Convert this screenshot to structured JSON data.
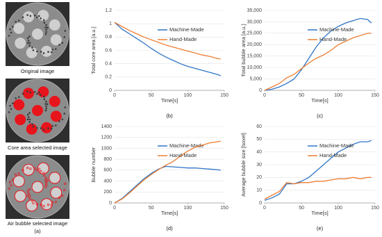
{
  "images": [
    {
      "caption": "Original image"
    },
    {
      "caption": "Core area selected image"
    },
    {
      "caption": "Air bubble selected image"
    }
  ],
  "panel_label": "(a)",
  "chart_data": [
    {
      "type": "line",
      "panel_label": "(b)",
      "xlabel": "Time[s]",
      "ylabel": "Total core area [a.u.]",
      "x": [
        0,
        10,
        20,
        30,
        40,
        50,
        60,
        70,
        80,
        90,
        100,
        110,
        120,
        130,
        140,
        145
      ],
      "series": [
        {
          "name": "Machine-Made",
          "color": "#2e75c6",
          "values": [
            1.02,
            0.92,
            0.85,
            0.78,
            0.71,
            0.63,
            0.56,
            0.5,
            0.45,
            0.4,
            0.36,
            0.33,
            0.3,
            0.27,
            0.24,
            0.22
          ]
        },
        {
          "name": "Hand-Made",
          "color": "#ed7d31",
          "values": [
            1.02,
            0.96,
            0.9,
            0.85,
            0.8,
            0.76,
            0.72,
            0.68,
            0.65,
            0.62,
            0.59,
            0.56,
            0.53,
            0.51,
            0.48,
            0.47
          ]
        }
      ],
      "xlim": [
        0,
        150
      ],
      "xticks": [
        0,
        50,
        100,
        150
      ],
      "ylim": [
        0,
        1.2
      ],
      "yticks": [
        0,
        0.2,
        0.4,
        0.6,
        0.8,
        1,
        1.2
      ],
      "grid": true
    },
    {
      "type": "line",
      "panel_label": "(c)",
      "xlabel": "Time[s]",
      "ylabel": "Total bubble area [a.u.]",
      "x": [
        0,
        10,
        20,
        30,
        40,
        50,
        60,
        70,
        80,
        90,
        100,
        110,
        120,
        130,
        140,
        145
      ],
      "series": [
        {
          "name": "Machine-Made",
          "color": "#2e75c6",
          "values": [
            0,
            500,
            1500,
            3000,
            5000,
            9000,
            14000,
            19000,
            23000,
            26000,
            28000,
            29500,
            30500,
            31500,
            31000,
            29500
          ]
        },
        {
          "name": "Hand-Made",
          "color": "#ed7d31",
          "values": [
            0,
            1500,
            3000,
            5500,
            7000,
            9500,
            12000,
            14000,
            15500,
            17500,
            20000,
            21500,
            23000,
            24000,
            25000,
            25000
          ]
        }
      ],
      "xlim": [
        0,
        150
      ],
      "xticks": [
        0,
        50,
        100,
        150
      ],
      "ylim": [
        0,
        35000
      ],
      "yticks": [
        0,
        {
          "value": 5000,
          "label": "5,000"
        },
        {
          "value": 10000,
          "label": "10,000"
        },
        {
          "value": 15000,
          "label": "15,000"
        },
        {
          "value": 20000,
          "label": "20,000"
        },
        {
          "value": 25000,
          "label": "25,000"
        },
        {
          "value": 30000,
          "label": "30,000"
        },
        {
          "value": 35000,
          "label": "35,000"
        }
      ],
      "grid": true
    },
    {
      "type": "line",
      "panel_label": "(d)",
      "xlabel": "Time[s]",
      "ylabel": "Bubble number",
      "x": [
        0,
        10,
        20,
        30,
        40,
        50,
        60,
        70,
        80,
        90,
        100,
        110,
        120,
        130,
        140,
        145
      ],
      "series": [
        {
          "name": "Machine-Made",
          "color": "#2e75c6",
          "values": [
            0,
            80,
            200,
            320,
            440,
            540,
            620,
            670,
            660,
            650,
            640,
            640,
            630,
            620,
            610,
            600
          ]
        },
        {
          "name": "Hand-Made",
          "color": "#ed7d31",
          "values": [
            0,
            70,
            180,
            300,
            420,
            520,
            610,
            690,
            760,
            860,
            950,
            1020,
            1060,
            1100,
            1120,
            1130
          ]
        }
      ],
      "xlim": [
        0,
        150
      ],
      "xticks": [
        0,
        50,
        100,
        150
      ],
      "ylim": [
        0,
        1400
      ],
      "yticks": [
        0,
        200,
        400,
        600,
        800,
        1000,
        1200,
        1400
      ],
      "grid": true
    },
    {
      "type": "line",
      "panel_label": "(e)",
      "xlabel": "Time[s]",
      "ylabel": "Average bubble size [boxel]",
      "x": [
        0,
        10,
        20,
        30,
        40,
        50,
        60,
        70,
        80,
        90,
        100,
        110,
        120,
        130,
        140,
        145
      ],
      "series": [
        {
          "name": "Machine-Made",
          "color": "#2e75c6",
          "values": [
            2,
            4,
            7,
            15,
            15,
            17,
            20,
            25,
            30,
            35,
            40,
            43,
            46,
            48,
            48,
            49
          ]
        },
        {
          "name": "Hand-Made",
          "color": "#ed7d31",
          "values": [
            3,
            6,
            9,
            16,
            15,
            16,
            16,
            17,
            17,
            18,
            19,
            19,
            20,
            19,
            20,
            20
          ]
        }
      ],
      "xlim": [
        0,
        150
      ],
      "xticks": [
        0,
        50,
        100,
        150
      ],
      "ylim": [
        0,
        60
      ],
      "yticks": [
        0,
        10,
        20,
        30,
        40,
        50,
        60
      ],
      "grid": true
    }
  ]
}
